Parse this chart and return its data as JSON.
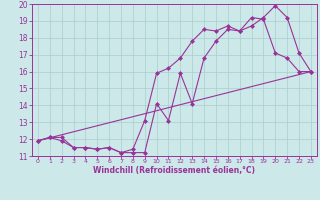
{
  "xlabel": "Windchill (Refroidissement éolien,°C)",
  "background_color": "#cce8e8",
  "line_color": "#993399",
  "xlim": [
    -0.5,
    23.5
  ],
  "ylim": [
    11,
    20
  ],
  "xticks": [
    0,
    1,
    2,
    3,
    4,
    5,
    6,
    7,
    8,
    9,
    10,
    11,
    12,
    13,
    14,
    15,
    16,
    17,
    18,
    19,
    20,
    21,
    22,
    23
  ],
  "yticks": [
    11,
    12,
    13,
    14,
    15,
    16,
    17,
    18,
    19,
    20
  ],
  "grid_color": "#aacece",
  "curve1_x": [
    0,
    1,
    2,
    3,
    4,
    5,
    6,
    7,
    8,
    9,
    10,
    11,
    12,
    13,
    14,
    15,
    16,
    17,
    18,
    19,
    20,
    21,
    22,
    23
  ],
  "curve1_y": [
    11.9,
    12.1,
    12.1,
    11.5,
    11.5,
    11.4,
    11.5,
    11.2,
    11.2,
    11.2,
    14.1,
    13.1,
    15.9,
    14.1,
    16.8,
    17.8,
    18.5,
    18.4,
    18.7,
    19.2,
    19.9,
    19.2,
    17.1,
    16.0
  ],
  "curve2_x": [
    0,
    1,
    2,
    3,
    4,
    5,
    6,
    7,
    8,
    9,
    10,
    11,
    12,
    13,
    14,
    15,
    16,
    17,
    18,
    19,
    20,
    21,
    22,
    23
  ],
  "curve2_y": [
    11.9,
    12.1,
    11.9,
    11.5,
    11.5,
    11.4,
    11.5,
    11.2,
    11.4,
    13.1,
    15.9,
    16.2,
    16.8,
    17.8,
    18.5,
    18.4,
    18.7,
    18.4,
    19.2,
    19.1,
    17.1,
    16.8,
    16.0,
    16.0
  ],
  "curve3_x": [
    0,
    23
  ],
  "curve3_y": [
    11.9,
    16.0
  ]
}
